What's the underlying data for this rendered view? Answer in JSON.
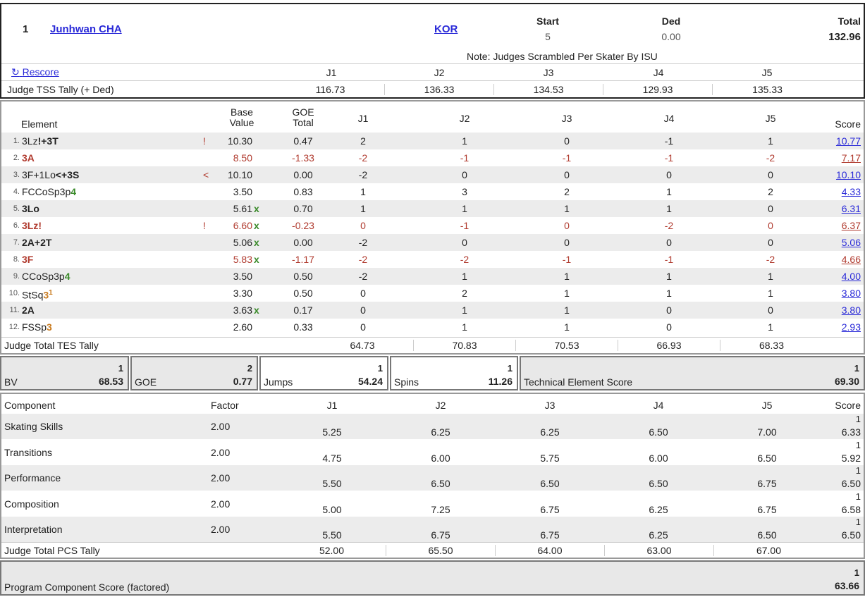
{
  "header": {
    "rank": "1",
    "skater": "Junhwan CHA",
    "nation": "KOR",
    "start_label": "Start",
    "start_value": "5",
    "ded_label": "Ded",
    "ded_value": "0.00",
    "total_label": "Total",
    "total_value": "132.96",
    "note": "Note: Judges Scrambled Per Skater By ISU",
    "rescore": "Rescore",
    "judges": [
      "J1",
      "J2",
      "J3",
      "J4",
      "J5"
    ],
    "tss_label": "Judge TSS Tally (+ Ded)",
    "tss": [
      "116.73",
      "136.33",
      "134.53",
      "129.93",
      "135.33"
    ]
  },
  "elements": {
    "headers": {
      "element": "Element",
      "base1": "Base",
      "base2": "Value",
      "goe1": "GOE",
      "goe2": "Total",
      "score": "Score"
    },
    "rows": [
      {
        "num": "1.",
        "name": "3Lz",
        "suffix": "!+3T",
        "flag": "!",
        "base": "10.30",
        "x": "",
        "goe": "0.47",
        "j": [
          "2",
          "1",
          "0",
          "-1",
          "1"
        ],
        "score": "10.77",
        "neg": false
      },
      {
        "num": "2.",
        "name": "3A",
        "suffix": "",
        "flag": "",
        "base": "8.50",
        "x": "",
        "goe": "-1.33",
        "j": [
          "-2",
          "-1",
          "-1",
          "-1",
          "-2"
        ],
        "score": "7.17",
        "neg": true
      },
      {
        "num": "3.",
        "name": "3F+1Lo",
        "suffix": "<+3S",
        "flag": "<",
        "base": "10.10",
        "x": "",
        "goe": "0.00",
        "j": [
          "-2",
          "0",
          "0",
          "0",
          "0"
        ],
        "score": "10.10",
        "neg": false
      },
      {
        "num": "4.",
        "name": "FCCoSp3p",
        "suffix": "4",
        "flag": "",
        "base": "3.50",
        "x": "",
        "goe": "0.83",
        "j": [
          "1",
          "3",
          "2",
          "1",
          "2"
        ],
        "score": "4.33",
        "neg": false
      },
      {
        "num": "5.",
        "name": "3Lo",
        "suffix": "",
        "flag": "",
        "base": "5.61",
        "x": "x",
        "goe": "0.70",
        "j": [
          "1",
          "1",
          "1",
          "1",
          "0"
        ],
        "score": "6.31",
        "neg": false
      },
      {
        "num": "6.",
        "name": "3Lz",
        "suffix": "!",
        "flag": "!",
        "base": "6.60",
        "x": "x",
        "goe": "-0.23",
        "j": [
          "0",
          "-1",
          "0",
          "-2",
          "0"
        ],
        "score": "6.37",
        "neg": true
      },
      {
        "num": "7.",
        "name": "2A+2T",
        "suffix": "",
        "flag": "",
        "base": "5.06",
        "x": "x",
        "goe": "0.00",
        "j": [
          "-2",
          "0",
          "0",
          "0",
          "0"
        ],
        "score": "5.06",
        "neg": false
      },
      {
        "num": "8.",
        "name": "3F",
        "suffix": "",
        "flag": "",
        "base": "5.83",
        "x": "x",
        "goe": "-1.17",
        "j": [
          "-2",
          "-2",
          "-1",
          "-1",
          "-2"
        ],
        "score": "4.66",
        "neg": true
      },
      {
        "num": "9.",
        "name": "CCoSp3p",
        "suffix": "4",
        "flag": "",
        "base": "3.50",
        "x": "",
        "goe": "0.50",
        "j": [
          "-2",
          "1",
          "1",
          "1",
          "1"
        ],
        "score": "4.00",
        "neg": false
      },
      {
        "num": "10.",
        "name": "StSq",
        "suffix": "3",
        "sup": "1",
        "flag": "",
        "base": "3.30",
        "x": "",
        "goe": "0.50",
        "j": [
          "0",
          "2",
          "1",
          "1",
          "1"
        ],
        "score": "3.80",
        "neg": false
      },
      {
        "num": "11.",
        "name": "2A",
        "suffix": "",
        "flag": "",
        "base": "3.63",
        "x": "x",
        "goe": "0.17",
        "j": [
          "0",
          "1",
          "1",
          "0",
          "0"
        ],
        "score": "3.80",
        "neg": false
      },
      {
        "num": "12.",
        "name": "FSSp",
        "suffix": "3",
        "flag": "",
        "base": "2.60",
        "x": "",
        "goe": "0.33",
        "j": [
          "0",
          "1",
          "1",
          "0",
          "1"
        ],
        "score": "2.93",
        "neg": false
      }
    ],
    "tes_label": "Judge Total TES Tally",
    "tes": [
      "64.73",
      "70.83",
      "70.53",
      "66.93",
      "68.33"
    ]
  },
  "summary": {
    "bv": {
      "label": "BV",
      "rank": "1",
      "value": "68.53"
    },
    "goe": {
      "label": "GOE",
      "rank": "2",
      "value": "0.77"
    },
    "jumps": {
      "label": "Jumps",
      "rank": "1",
      "value": "54.24"
    },
    "spins": {
      "label": "Spins",
      "rank": "1",
      "value": "11.26"
    },
    "tes": {
      "label": "Technical Element Score",
      "rank": "1",
      "value": "69.30"
    }
  },
  "components": {
    "headers": {
      "component": "Component",
      "factor": "Factor",
      "score": "Score"
    },
    "rows": [
      {
        "name": "Skating Skills",
        "factor": "2.00",
        "j": [
          "5.25",
          "6.25",
          "6.25",
          "6.50",
          "7.00"
        ],
        "rank": "1",
        "score": "6.33"
      },
      {
        "name": "Transitions",
        "factor": "2.00",
        "j": [
          "4.75",
          "6.00",
          "5.75",
          "6.00",
          "6.50"
        ],
        "rank": "1",
        "score": "5.92"
      },
      {
        "name": "Performance",
        "factor": "2.00",
        "j": [
          "5.50",
          "6.50",
          "6.50",
          "6.50",
          "6.75"
        ],
        "rank": "1",
        "score": "6.50"
      },
      {
        "name": "Composition",
        "factor": "2.00",
        "j": [
          "5.00",
          "7.25",
          "6.75",
          "6.25",
          "6.75"
        ],
        "rank": "1",
        "score": "6.58"
      },
      {
        "name": "Interpretation",
        "factor": "2.00",
        "j": [
          "5.50",
          "6.75",
          "6.75",
          "6.25",
          "6.50"
        ],
        "rank": "1",
        "score": "6.50"
      }
    ],
    "pcs_label": "Judge Total PCS Tally",
    "pcs": [
      "52.00",
      "65.50",
      "64.00",
      "63.00",
      "67.00"
    ]
  },
  "pcs_total": {
    "label": "Program Component Score (factored)",
    "rank": "1",
    "value": "63.66"
  }
}
